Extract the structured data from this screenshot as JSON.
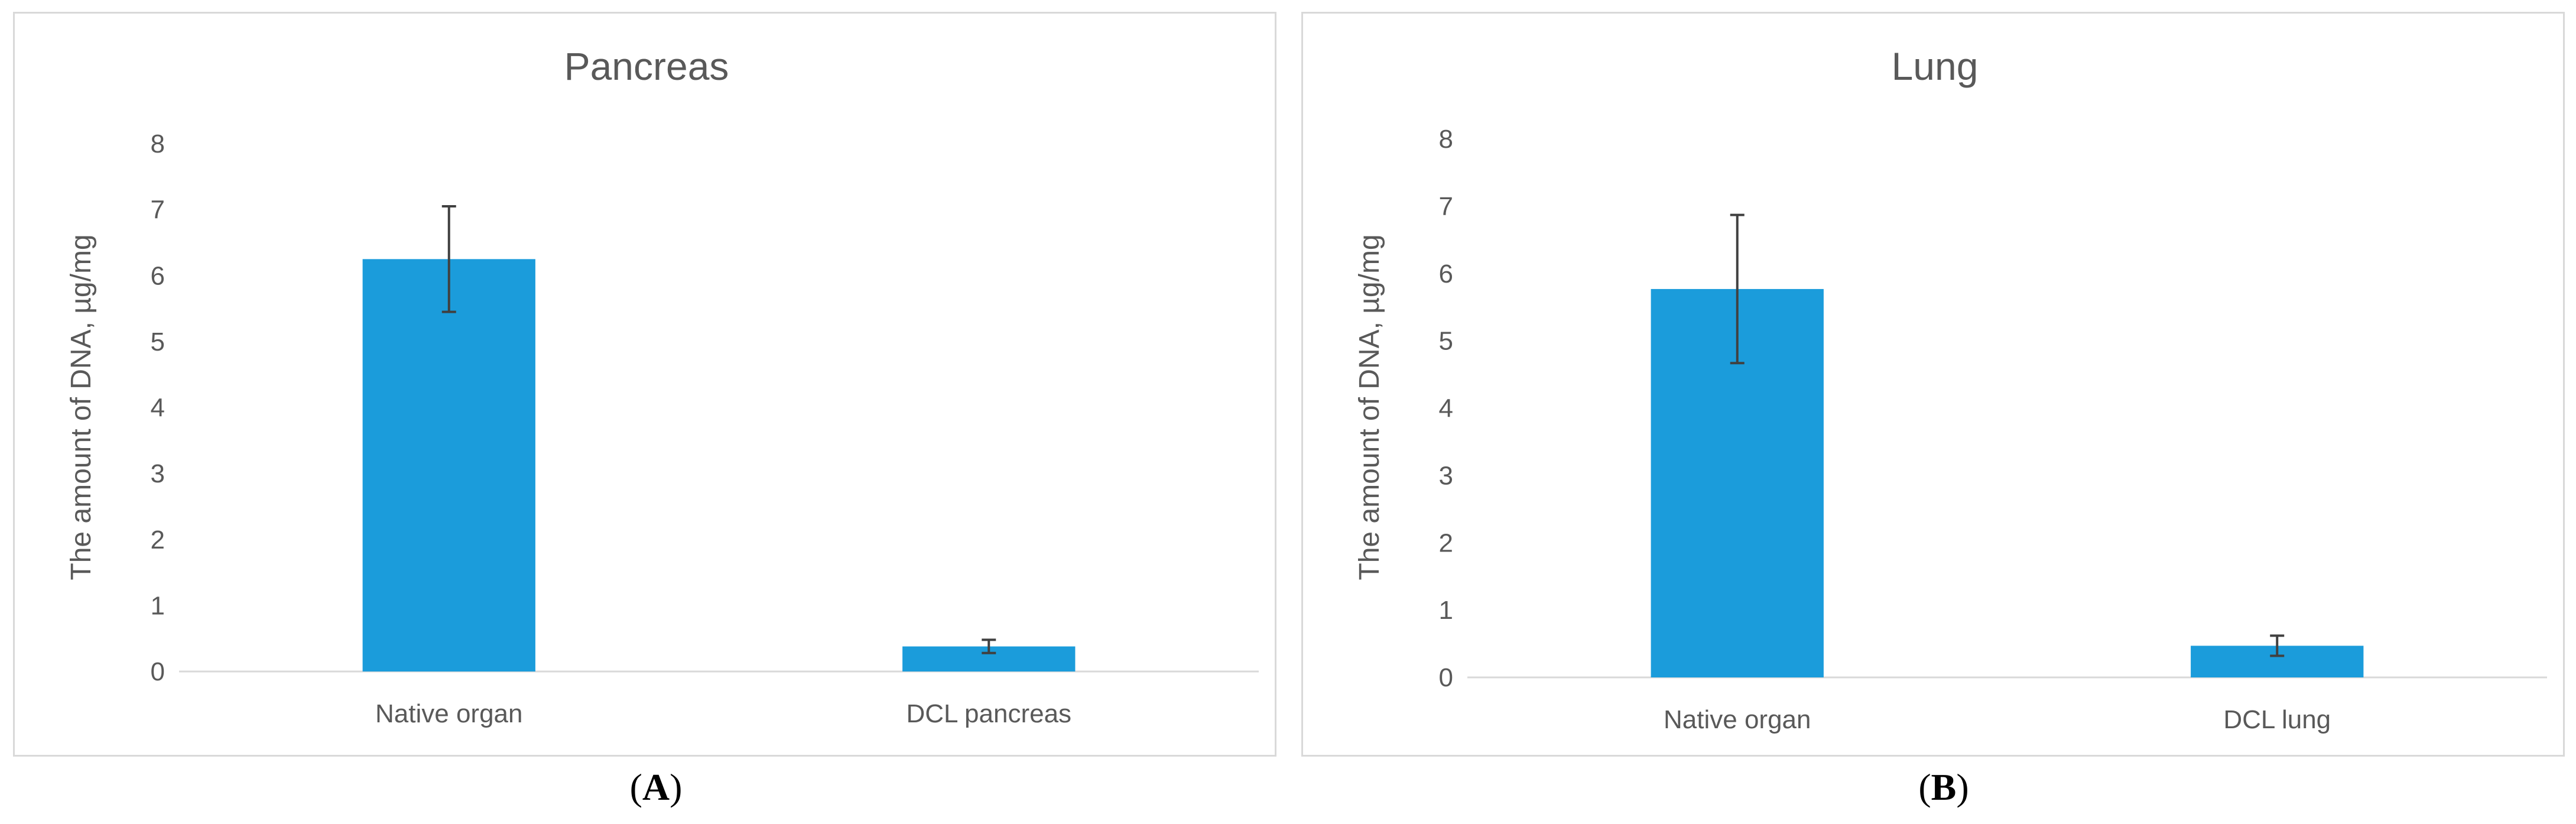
{
  "chart_data": [
    {
      "type": "bar",
      "title": "Pancreas",
      "ylabel": "The amount of DNA, µg/mg",
      "xlabel": "",
      "ylim": [
        0,
        8
      ],
      "yticks": [
        "0",
        "1",
        "2",
        "3",
        "4",
        "5",
        "6",
        "7",
        "8"
      ],
      "categories": [
        "Native organ",
        "DCL pancreas"
      ],
      "values": [
        6.25,
        0.38
      ],
      "error": [
        0.8,
        0.1
      ],
      "bar_color": "#1b9cdb",
      "grid": false,
      "caption_letter": "A"
    },
    {
      "type": "bar",
      "title": "Lung",
      "ylabel": "The amount of DNA, µg/mg",
      "xlabel": "",
      "ylim": [
        0,
        8
      ],
      "yticks": [
        "0",
        "1",
        "2",
        "3",
        "4",
        "5",
        "6",
        "7",
        "8"
      ],
      "categories": [
        "Native organ",
        "DCL lung"
      ],
      "values": [
        5.77,
        0.47
      ],
      "error": [
        1.1,
        0.15
      ],
      "bar_color": "#1b9cdb",
      "grid": false,
      "caption_letter": "B"
    }
  ]
}
